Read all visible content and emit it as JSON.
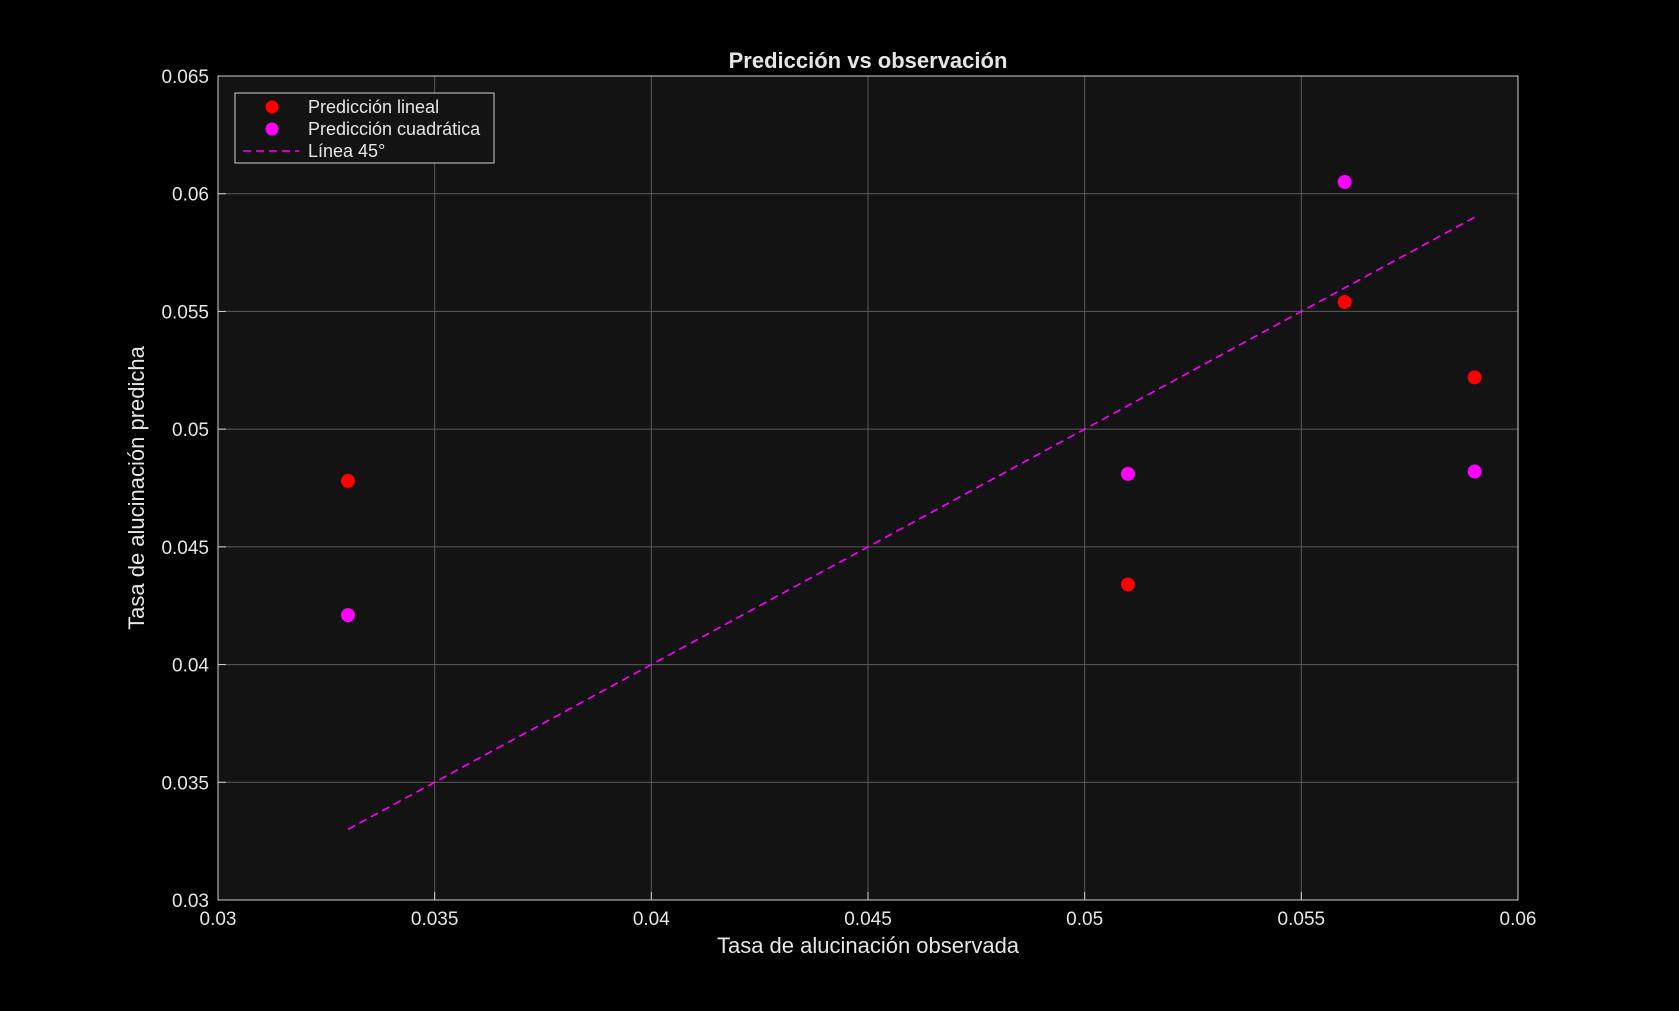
{
  "chart_data": {
    "type": "scatter",
    "title": "Predicción vs observación",
    "xlabel": "Tasa de alucinación observada",
    "ylabel": "Tasa de alucinación predicha",
    "xlim": [
      0.03,
      0.06
    ],
    "ylim": [
      0.03,
      0.065
    ],
    "xticks": [
      0.03,
      0.035,
      0.04,
      0.045,
      0.05,
      0.055,
      0.06
    ],
    "xtick_labels": [
      "0.03",
      "0.035",
      "0.04",
      "0.045",
      "0.05",
      "0.055",
      "0.06"
    ],
    "yticks": [
      0.03,
      0.035,
      0.04,
      0.045,
      0.05,
      0.055,
      0.06,
      0.065
    ],
    "ytick_labels": [
      "0.03",
      "0.035",
      "0.04",
      "0.045",
      "0.05",
      "0.055",
      "0.06",
      "0.065"
    ],
    "grid": true,
    "legend_position": "top-left",
    "colors": {
      "figure_background": "#000000",
      "axes_background": "#131313",
      "grid": "#5a5a5a",
      "axis": "#d0d0d0",
      "text": "#e6e6e6"
    },
    "series": [
      {
        "name": "Predicción lineal",
        "kind": "scatter",
        "color": "#ff0000",
        "points": [
          {
            "x": 0.033,
            "y": 0.0478
          },
          {
            "x": 0.051,
            "y": 0.0434
          },
          {
            "x": 0.056,
            "y": 0.0554
          },
          {
            "x": 0.059,
            "y": 0.0522
          }
        ]
      },
      {
        "name": "Predicción cuadrática",
        "kind": "scatter",
        "color": "#ff00ff",
        "points": [
          {
            "x": 0.033,
            "y": 0.0421
          },
          {
            "x": 0.051,
            "y": 0.0481
          },
          {
            "x": 0.056,
            "y": 0.0605
          },
          {
            "x": 0.059,
            "y": 0.0482
          }
        ]
      },
      {
        "name": "Línea 45°",
        "kind": "dashed-line",
        "color": "#ff00ff",
        "points": [
          {
            "x": 0.033,
            "y": 0.033
          },
          {
            "x": 0.059,
            "y": 0.059
          }
        ]
      }
    ]
  }
}
